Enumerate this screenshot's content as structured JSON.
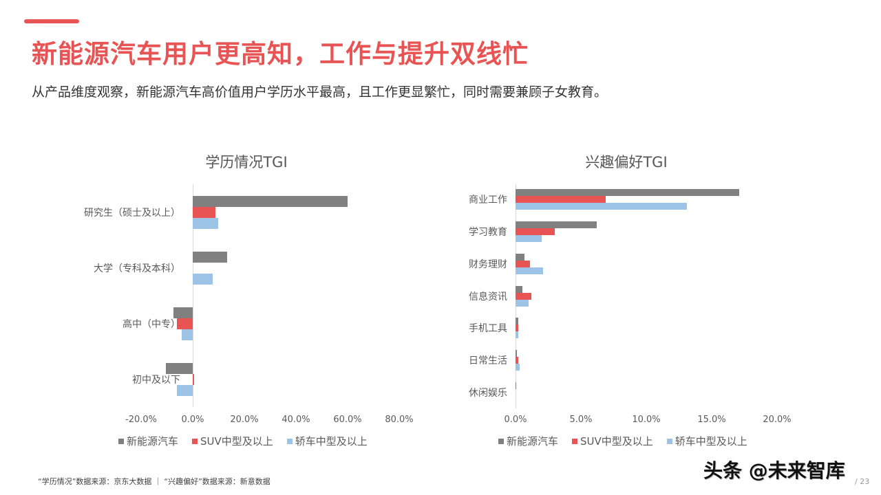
{
  "header": {
    "title": "新能源汽车用户更高知，工作与提升双线忙",
    "subtitle": "从产品维度观察，新能源汽车高价值用户学历水平最高，且工作更显繁忙，同时需要兼顾子女教育。",
    "accent_color": "#e85454"
  },
  "colors": {
    "新能源汽车": "#808080",
    "SUV中型及以上": "#e85454",
    "轿车中型及以上": "#9dc3e6"
  },
  "chart_data": [
    {
      "type": "bar",
      "orientation": "horizontal",
      "title": "学历情况TGI",
      "categories": [
        "研究生（硕士及以上）",
        "大学（专科及本科）",
        "高中（中专）",
        "初中及以下"
      ],
      "series": [
        {
          "name": "新能源汽车",
          "values": [
            60.0,
            13.3,
            -7.5,
            -10.4
          ]
        },
        {
          "name": "SUV中型及以上",
          "values": [
            8.8,
            0.0,
            -6.1,
            0.5
          ]
        },
        {
          "name": "轿车中型及以上",
          "values": [
            9.9,
            7.7,
            -4.3,
            -6.1
          ]
        }
      ],
      "unit": "%",
      "xlim": [
        -20,
        80
      ],
      "ticks": [
        "-20.0%",
        "0.0%",
        "20.0%",
        "40.0%",
        "60.0%",
        "80.0%"
      ],
      "grid": false,
      "legend_position": "bottom"
    },
    {
      "type": "bar",
      "orientation": "horizontal",
      "title": "兴趣偏好TGI",
      "categories": [
        "商业工作",
        "学习教育",
        "财务理财",
        "信息资讯",
        "手机工具",
        "日常生活",
        "休闲娱乐"
      ],
      "series": [
        {
          "name": "新能源汽车",
          "values": [
            17.1,
            6.2,
            0.7,
            0.5,
            0.2,
            0.1,
            0.05
          ]
        },
        {
          "name": "SUV中型及以上",
          "values": [
            6.9,
            3.0,
            1.1,
            1.2,
            0.2,
            0.2,
            0.0
          ]
        },
        {
          "name": "轿车中型及以上",
          "values": [
            13.1,
            2.0,
            2.1,
            1.0,
            0.2,
            0.3,
            0.0
          ]
        }
      ],
      "unit": "%",
      "xlim": [
        0,
        20
      ],
      "ticks": [
        "0.0%",
        "5.0%",
        "10.0%",
        "15.0%",
        "20.0%"
      ],
      "grid": false,
      "legend_position": "bottom"
    }
  ],
  "legend": [
    "新能源汽车",
    "SUV中型及以上",
    "轿车中型及以上"
  ],
  "footer": {
    "source": "“学历情况”数据来源：京东大数据  ｜  “兴趣偏好”数据来源：新意数据"
  },
  "watermark": "头条 @未来智库",
  "page_number": "/ 23"
}
